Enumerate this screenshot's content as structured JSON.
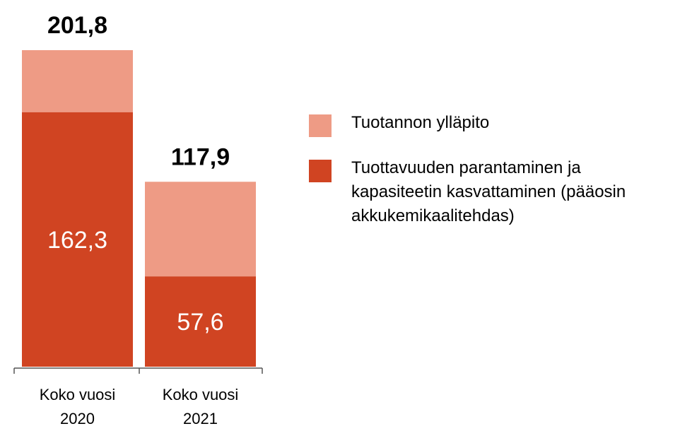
{
  "chart_data": {
    "type": "stacked_bar",
    "categories": [
      "Koko vuosi 2020",
      "Koko vuosi 2021"
    ],
    "series": [
      {
        "name": "Tuottavuuden parantaminen ja kapasiteetin kasvattaminen (pääosin akkukemikaalitehdas)",
        "color": "#d04422",
        "values": [
          162.3,
          57.6
        ],
        "value_labels": [
          "162,3",
          "57,6"
        ]
      },
      {
        "name": "Tuotannon ylläpito",
        "color": "#ee9b85",
        "values": [
          39.5,
          60.3
        ]
      }
    ],
    "totals": [
      201.8,
      117.9
    ],
    "total_labels": [
      "201,8",
      "117,9"
    ],
    "legend": "right"
  }
}
